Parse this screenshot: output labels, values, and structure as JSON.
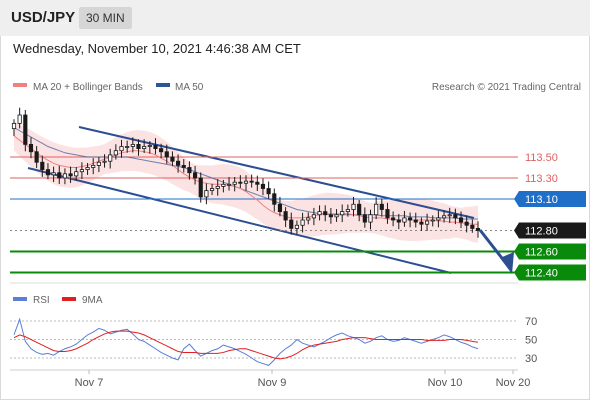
{
  "header": {
    "symbol": "USD/JPY",
    "timeframe": "30 MIN"
  },
  "timestamp": "Wednesday, November 10, 2021 4:46:38 AM CET",
  "legend": {
    "ma20": "MA 20 + Bollinger Bands",
    "ma50": "MA 50",
    "credit": "Research © 2021 Trading Central"
  },
  "rsi_legend": {
    "rsi": "RSI",
    "ma9": "9MA"
  },
  "colors": {
    "ma20": "#f08080",
    "ma50": "#2b5797",
    "band_fill": "#fcdede",
    "resistance": "#e06060",
    "pivot": "#1f6fc9",
    "support": "#0a8a0a",
    "last_price": "#1a1a1a",
    "channel": "#2b4f92",
    "rsi": "#5b7fd6",
    "rsi_ma": "#e02020",
    "up_candle": "#ffffff",
    "down_candle": "#1a1a1a"
  },
  "chart_data": [
    {
      "type": "candlestick",
      "title": "USD/JPY 30 MIN",
      "x_ticks": [
        "Nov 7",
        "Nov 9",
        "Nov 10",
        "Nov 20"
      ],
      "ylim": [
        112.25,
        113.95
      ],
      "levels": [
        {
          "label": "113.50",
          "value": 113.5,
          "kind": "resistance"
        },
        {
          "label": "113.30",
          "value": 113.3,
          "kind": "resistance"
        },
        {
          "label": "113.10",
          "value": 113.1,
          "kind": "pivot"
        },
        {
          "label": "112.80",
          "value": 112.8,
          "kind": "last"
        },
        {
          "label": "112.60",
          "value": 112.6,
          "kind": "support"
        },
        {
          "label": "112.40",
          "value": 112.4,
          "kind": "support"
        }
      ],
      "close_series": [
        113.82,
        113.9,
        113.62,
        113.55,
        113.45,
        113.38,
        113.33,
        113.35,
        113.3,
        113.34,
        113.32,
        113.36,
        113.38,
        113.4,
        113.42,
        113.45,
        113.46,
        113.52,
        113.56,
        113.6,
        113.6,
        113.62,
        113.58,
        113.6,
        113.61,
        113.58,
        113.55,
        113.5,
        113.46,
        113.42,
        113.4,
        113.35,
        113.3,
        113.12,
        113.18,
        113.2,
        113.22,
        113.24,
        113.24,
        113.26,
        113.25,
        113.27,
        113.26,
        113.24,
        113.2,
        113.15,
        113.05,
        112.98,
        112.9,
        112.82,
        112.85,
        112.9,
        112.92,
        112.95,
        112.98,
        112.95,
        112.93,
        112.95,
        112.98,
        113.0,
        113.05,
        112.95,
        112.88,
        112.95,
        113.05,
        113.0,
        112.92,
        112.9,
        112.88,
        112.92,
        112.9,
        112.88,
        112.86,
        112.89,
        112.9,
        112.92,
        112.94,
        112.95,
        112.92,
        112.88,
        112.85,
        112.82,
        112.8
      ],
      "ma20_series": [
        113.7,
        113.66,
        113.62,
        113.58,
        113.54,
        113.5,
        113.47,
        113.44,
        113.42,
        113.41,
        113.4,
        113.4,
        113.41,
        113.42,
        113.44,
        113.46,
        113.48,
        113.5,
        113.52,
        113.54,
        113.55,
        113.56,
        113.56,
        113.55,
        113.54,
        113.52,
        113.49,
        113.46,
        113.42,
        113.38,
        113.34,
        113.31,
        113.28,
        113.26,
        113.25,
        113.24,
        113.24,
        113.24,
        113.23,
        113.22,
        113.2,
        113.17,
        113.13,
        113.09,
        113.04,
        113.0,
        112.97,
        112.95,
        112.93,
        112.92,
        112.92,
        112.92,
        112.93,
        112.94,
        112.95,
        112.96,
        112.96,
        112.96,
        112.96,
        112.96,
        112.95,
        112.94,
        112.93,
        112.92,
        112.92,
        112.92,
        112.91,
        112.91,
        112.9,
        112.9,
        112.9,
        112.9,
        112.9,
        112.9,
        112.9,
        112.89,
        112.89,
        112.88,
        112.88,
        112.87,
        112.87,
        112.86,
        112.86
      ],
      "ma50_series": [
        113.78,
        113.75,
        113.72,
        113.69,
        113.66,
        113.63,
        113.6,
        113.58,
        113.56,
        113.54,
        113.53,
        113.52,
        113.51,
        113.5,
        113.5,
        113.5,
        113.5,
        113.5,
        113.5,
        113.5,
        113.5,
        113.49,
        113.48,
        113.47,
        113.46,
        113.45,
        113.44,
        113.43,
        113.42,
        113.41,
        113.4,
        113.38,
        113.36,
        113.34,
        113.32,
        113.3,
        113.28,
        113.26,
        113.24,
        113.22,
        113.2,
        113.18,
        113.16,
        113.14,
        113.12,
        113.1,
        113.08,
        113.06,
        113.04,
        113.02,
        113.0,
        112.99,
        112.98,
        112.97,
        112.96,
        112.96,
        112.95,
        112.95,
        112.95,
        112.95,
        112.95,
        112.95,
        112.95,
        112.95,
        112.95,
        112.94,
        112.94,
        112.94,
        112.94,
        112.94,
        112.93,
        112.93,
        112.93,
        112.93,
        112.92,
        112.92,
        112.92,
        112.92,
        112.92,
        112.91,
        112.91,
        112.91,
        112.91
      ]
    },
    {
      "type": "line",
      "title": "RSI",
      "y_ticks": [
        "70",
        "50",
        "30"
      ],
      "ylim": [
        15,
        85
      ],
      "series": [
        {
          "name": "RSI",
          "values": [
            55,
            72,
            48,
            40,
            36,
            34,
            35,
            33,
            37,
            40,
            42,
            45,
            50,
            55,
            58,
            62,
            60,
            56,
            58,
            60,
            61,
            56,
            50,
            48,
            44,
            40,
            36,
            33,
            30,
            28,
            40,
            45,
            38,
            32,
            35,
            38,
            40,
            44,
            42,
            40,
            37,
            34,
            30,
            26,
            24,
            22,
            28,
            35,
            40,
            44,
            50,
            46,
            44,
            42,
            45,
            48,
            52,
            55,
            57,
            54,
            52,
            50,
            46,
            48,
            52,
            54,
            50,
            48,
            49,
            52,
            50,
            48,
            46,
            48,
            50,
            52,
            55,
            53,
            50,
            47,
            45,
            42,
            40
          ]
        },
        {
          "name": "9MA",
          "values": [
            52,
            55,
            53,
            50,
            47,
            44,
            41,
            38,
            37,
            37,
            38,
            40,
            43,
            46,
            50,
            53,
            56,
            58,
            59,
            59,
            59,
            58,
            57,
            55,
            52,
            49,
            46,
            43,
            40,
            37,
            36,
            36,
            36,
            35,
            35,
            35,
            35,
            36,
            38,
            39,
            40,
            40,
            38,
            36,
            34,
            32,
            30,
            29,
            30,
            32,
            35,
            39,
            42,
            44,
            45,
            46,
            47,
            48,
            50,
            51,
            52,
            52,
            52,
            51,
            50,
            50,
            50,
            50,
            50,
            50,
            50,
            50,
            50,
            49,
            49,
            49,
            49,
            50,
            50,
            50,
            49,
            48,
            47
          ]
        }
      ]
    }
  ]
}
